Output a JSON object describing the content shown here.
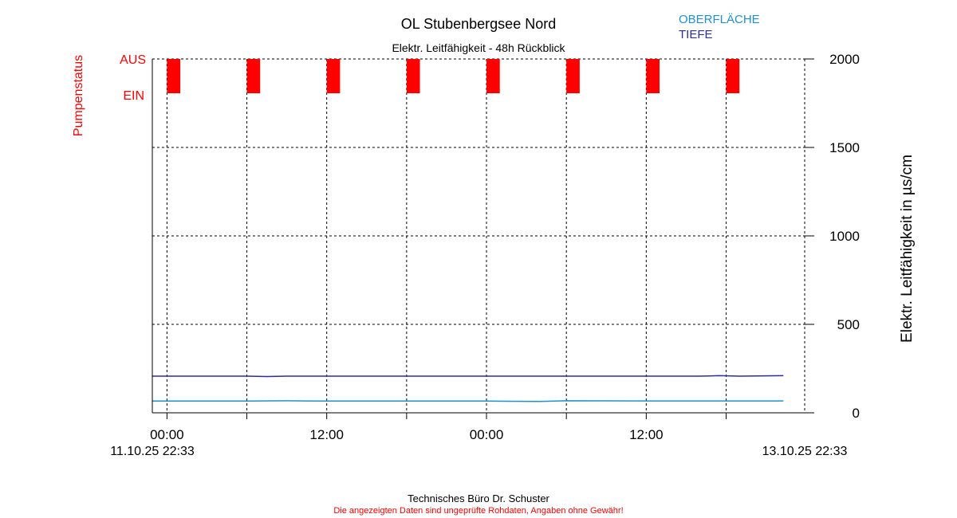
{
  "chart_data": {
    "type": "line",
    "title": "OL Stubenbergsee Nord",
    "subtitle": "Elektr. Leitfähigkeit - 48h Rückblick",
    "ylabel": "Elektr. Leitfähigkeit in µs/cm",
    "pump_axis_label": "Pumpenstatus",
    "pump_states": [
      "AUS",
      "EIN"
    ],
    "ylim": [
      0,
      2000
    ],
    "yticks": [
      0,
      500,
      1000,
      1500,
      2000
    ],
    "ytick_labels": [
      "0",
      "500",
      "1000",
      "1500",
      "2000"
    ],
    "x_range_hours": [
      -1.1,
      47.9
    ],
    "x_major_ticks_hours": [
      0,
      12,
      24,
      36
    ],
    "x_major_tick_labels": [
      "00:00",
      "12:00",
      "00:00",
      "12:00"
    ],
    "x_minor_ticks_hours": [
      6,
      18,
      30,
      42
    ],
    "x_start_label": "11.10.25 22:33",
    "x_end_label": "13.10.25 22:33",
    "grid": true,
    "legend": {
      "position": "top-right",
      "items": [
        {
          "name": "OBERFLÄCHE",
          "color": "#1e90d6"
        },
        {
          "name": "TIEFE",
          "color": "#2b2bab"
        }
      ]
    },
    "series": [
      {
        "name": "OBERFLÄCHE",
        "color": "#1e90d6",
        "x": [
          -1.1,
          6,
          9,
          12,
          24,
          28,
          30,
          36,
          44,
          46.3
        ],
        "values": [
          66,
          66,
          68,
          66,
          66,
          64,
          68,
          67,
          67,
          67
        ]
      },
      {
        "name": "TIEFE",
        "color": "#2b2bab",
        "x": [
          -1.1,
          6,
          7.5,
          9,
          12,
          24,
          36,
          40,
          41.5,
          43,
          46.3
        ],
        "values": [
          207,
          207,
          205,
          207,
          207,
          207,
          207,
          207,
          210,
          207,
          210
        ]
      }
    ],
    "pump_on_intervals_hours": [
      [
        0,
        1
      ],
      [
        6,
        7
      ],
      [
        12,
        13
      ],
      [
        18,
        19
      ],
      [
        24,
        25
      ],
      [
        30,
        31
      ],
      [
        36,
        37
      ],
      [
        42,
        43
      ]
    ],
    "pump_color": "#ff0000"
  },
  "footer": {
    "company": "Technisches Büro Dr. Schuster",
    "disclaimer": "Die angezeigten Daten sind ungeprüfte Rohdaten, Angaben ohne Gewähr!"
  }
}
